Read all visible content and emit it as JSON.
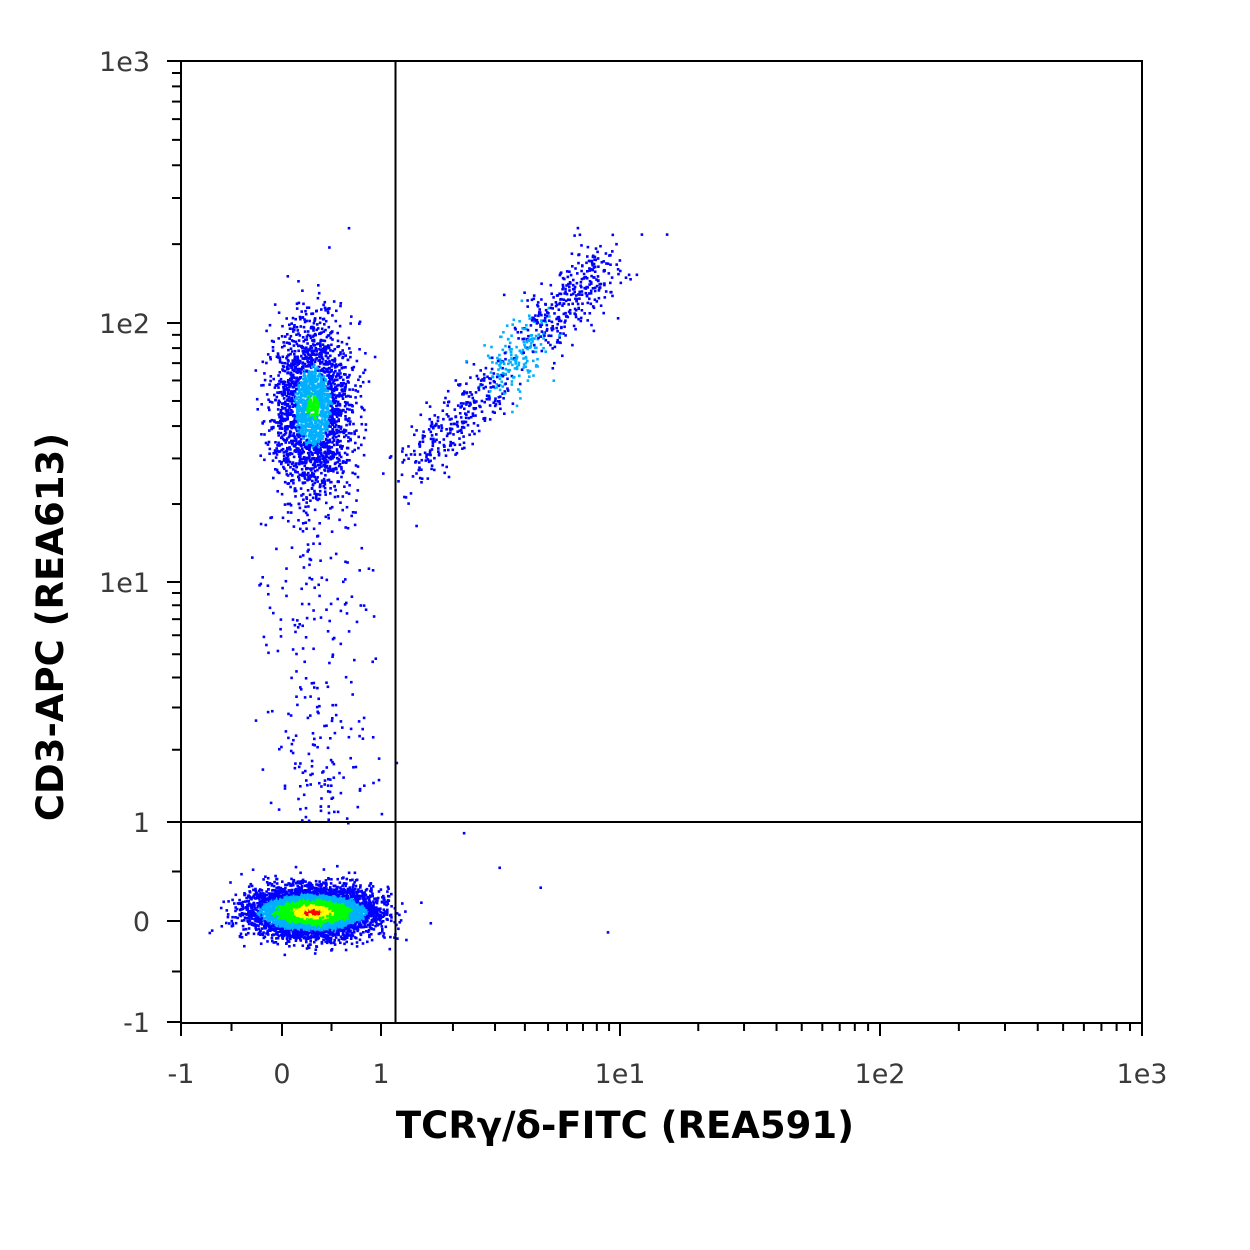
{
  "chart_data": {
    "type": "scatter",
    "style": "density-colored flow cytometry dot plot",
    "xlabel": "TCRγ/δ-FITC (REA591)",
    "ylabel": "CD3-APC (REA613)",
    "scale": "biexponential (linear near 0, logarithmic above 1)",
    "xlim": [
      -1,
      1000
    ],
    "ylim": [
      -1,
      1000
    ],
    "x_ticks": [
      {
        "label": "-1",
        "value": -1
      },
      {
        "label": "0",
        "value": 0
      },
      {
        "label": "1",
        "value": 1
      },
      {
        "label": "1e1",
        "value": 10
      },
      {
        "label": "1e2",
        "value": 100
      },
      {
        "label": "1e3",
        "value": 1000
      }
    ],
    "y_ticks": [
      {
        "label": "-1",
        "value": -1
      },
      {
        "label": "0",
        "value": 0
      },
      {
        "label": "1",
        "value": 1
      },
      {
        "label": "1e1",
        "value": 10
      },
      {
        "label": "1e2",
        "value": 100
      },
      {
        "label": "1e3",
        "value": 1000
      }
    ],
    "quadrant_gates": {
      "x": 1.15,
      "y": 1
    },
    "grid": false,
    "colormap": [
      "#0000ff",
      "#00b0ff",
      "#00ff00",
      "#ffff00",
      "#ff0000"
    ],
    "populations": [
      {
        "x_center": 0.3,
        "y_center": 0.1,
        "x_spread": 0.55,
        "y_spread": 0.22,
        "relative_count": 0.62,
        "peak_density": "high"
      },
      {
        "x_center": 0.3,
        "y_center": 48,
        "x_spread": 0.38,
        "y_spread": 0.5,
        "relative_count": 0.27,
        "peak_density": "low"
      },
      {
        "x_from": 1.2,
        "y_from": 25,
        "x_to": 9,
        "y_to": 180,
        "relative_count": 0.09,
        "peak_density": "low"
      }
    ]
  }
}
